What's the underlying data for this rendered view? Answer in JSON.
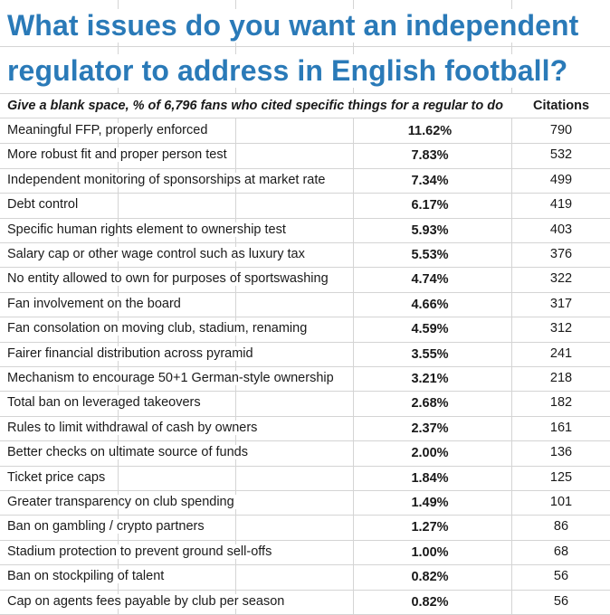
{
  "title_line1": "What issues do you want an independent",
  "title_line2": "regulator to address in English football?",
  "header": {
    "description": "Give a blank space, % of 6,796 fans who cited specific things for a regular to do",
    "citations": "Citations"
  },
  "chart_data": {
    "type": "table",
    "columns": [
      "Give a blank space, % of 6,796 fans who cited specific things for a regular to do",
      "",
      "Citations"
    ],
    "rows": [
      {
        "issue": "Meaningful FFP, properly enforced",
        "percent": "11.62%",
        "citations": "790"
      },
      {
        "issue": "More robust fit and proper person test",
        "percent": "7.83%",
        "citations": "532"
      },
      {
        "issue": "Independent monitoring of sponsorships at market rate",
        "percent": "7.34%",
        "citations": "499"
      },
      {
        "issue": "Debt control",
        "percent": "6.17%",
        "citations": "419"
      },
      {
        "issue": "Specific human rights element to ownership test",
        "percent": "5.93%",
        "citations": "403"
      },
      {
        "issue": "Salary cap or other wage control such as luxury tax",
        "percent": "5.53%",
        "citations": "376"
      },
      {
        "issue": "No entity allowed to own for purposes of sportswashing",
        "percent": "4.74%",
        "citations": "322"
      },
      {
        "issue": "Fan involvement on the board",
        "percent": "4.66%",
        "citations": "317"
      },
      {
        "issue": "Fan consolation on moving club, stadium, renaming",
        "percent": "4.59%",
        "citations": "312"
      },
      {
        "issue": "Fairer financial distribution across pyramid",
        "percent": "3.55%",
        "citations": "241"
      },
      {
        "issue": "Mechanism to encourage 50+1 German-style ownership",
        "percent": "3.21%",
        "citations": "218"
      },
      {
        "issue": "Total ban on leveraged takeovers",
        "percent": "2.68%",
        "citations": "182"
      },
      {
        "issue": "Rules to limit withdrawal of cash by owners",
        "percent": "2.37%",
        "citations": "161"
      },
      {
        "issue": "Better checks on ultimate source of funds",
        "percent": "2.00%",
        "citations": "136"
      },
      {
        "issue": "Ticket price caps",
        "percent": "1.84%",
        "citations": "125"
      },
      {
        "issue": "Greater transparency on club spending",
        "percent": "1.49%",
        "citations": "101"
      },
      {
        "issue": "Ban on gambling / crypto partners",
        "percent": "1.27%",
        "citations": "86"
      },
      {
        "issue": "Stadium protection to prevent ground sell-offs",
        "percent": "1.00%",
        "citations": "68"
      },
      {
        "issue": "Ban on stockpiling of talent",
        "percent": "0.82%",
        "citations": "56"
      },
      {
        "issue": "Cap on agents fees payable by club per season",
        "percent": "0.82%",
        "citations": "56"
      }
    ]
  },
  "colors": {
    "title": "#2a7ab8",
    "gridline": "#d4d4d4",
    "text": "#1a1a1a"
  }
}
